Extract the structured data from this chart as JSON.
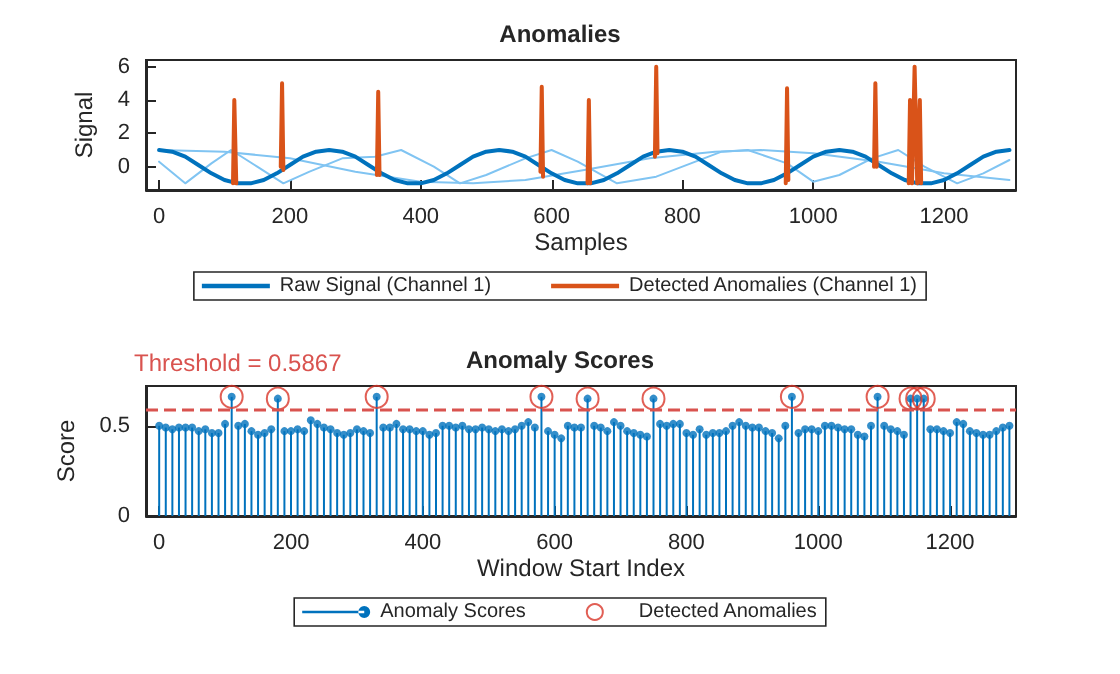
{
  "chart_data": [
    {
      "type": "line",
      "title": "Anomalies",
      "xlabel": "Samples",
      "ylabel": "Signal",
      "xlim": [
        -20,
        1310
      ],
      "ylim": [
        -1.4,
        6.4
      ],
      "xticks": [
        0,
        200,
        400,
        600,
        800,
        1000,
        1200
      ],
      "yticks": [
        0,
        2,
        4,
        6
      ],
      "grid": false,
      "legend": "bottom",
      "marker": "none",
      "line_style": "solid",
      "series": [
        {
          "color": "#80c4f2",
          "x": [
            0,
            40,
            80,
            110,
            150,
            190,
            230,
            280,
            330,
            370,
            420,
            460,
            500,
            560,
            600,
            640,
            700,
            760,
            820,
            860,
            900,
            960,
            1000,
            1040,
            1090,
            1130,
            1170,
            1220,
            1260,
            1300
          ],
          "values": [
            0.3,
            -1,
            0.2,
            1,
            0,
            -1,
            -0.3,
            0.5,
            0.6,
            1,
            0,
            -1,
            -0.5,
            0.5,
            1,
            0.3,
            -1,
            -0.6,
            0.3,
            0.9,
            1,
            0.2,
            -0.9,
            -0.5,
            0.5,
            1,
            0,
            -1,
            -0.4,
            0.4
          ]
        },
        {
          "color": "#80c4f2",
          "x": [
            0,
            100,
            200,
            300,
            400,
            480,
            560,
            650,
            750,
            850,
            920,
            1000,
            1100,
            1200,
            1300
          ],
          "values": [
            1,
            0.9,
            0.5,
            -0.3,
            -0.9,
            -1,
            -0.8,
            -0.2,
            0.5,
            0.9,
            1,
            0.8,
            0.3,
            -0.4,
            -0.8
          ]
        },
        {
          "name": "Raw Signal (Channel 1)",
          "color": "#0072bd",
          "x": [
            0,
            20,
            40,
            60,
            80,
            100,
            120,
            140,
            160,
            180,
            200,
            220,
            240,
            260,
            280,
            300,
            320,
            340,
            360,
            380,
            400,
            420,
            440,
            460,
            480,
            500,
            520,
            540,
            560,
            580,
            600,
            620,
            640,
            660,
            680,
            700,
            720,
            740,
            760,
            780,
            800,
            820,
            840,
            860,
            880,
            900,
            920,
            940,
            960,
            980,
            1000,
            1020,
            1040,
            1060,
            1080,
            1100,
            1120,
            1140,
            1160,
            1180,
            1200,
            1220,
            1240,
            1260,
            1280,
            1300
          ],
          "values": [
            1,
            0.9,
            0.6,
            0.1,
            -0.4,
            -0.8,
            -1,
            -1,
            -0.8,
            -0.4,
            0.1,
            0.6,
            0.9,
            1,
            0.9,
            0.6,
            0.1,
            -0.4,
            -0.8,
            -1,
            -1,
            -0.8,
            -0.4,
            0.1,
            0.6,
            0.9,
            1,
            0.9,
            0.6,
            0.1,
            -0.4,
            -0.8,
            -1,
            -1,
            -0.8,
            -0.4,
            0.1,
            0.6,
            0.9,
            1,
            0.9,
            0.6,
            0.1,
            -0.4,
            -0.8,
            -1,
            -1,
            -0.8,
            -0.4,
            0.1,
            0.6,
            0.9,
            1,
            0.9,
            0.6,
            0.1,
            -0.4,
            -0.8,
            -1,
            -1,
            -0.8,
            -0.4,
            0.1,
            0.6,
            0.9,
            1
          ]
        },
        {
          "name": "Detected Anomalies (Channel 1)",
          "color": "#d95319",
          "x": [
            113,
            115,
            118,
            119,
            186,
            188,
            190,
            191,
            333,
            335,
            337,
            338,
            583,
            585,
            587,
            588,
            655,
            657,
            659,
            660,
            758,
            760,
            762,
            763,
            958,
            960,
            962,
            963,
            1093,
            1095,
            1097,
            1098,
            1146,
            1148,
            1151,
            1155,
            1159,
            1163,
            1165
          ],
          "values": [
            -1,
            4,
            -1,
            null,
            0,
            5,
            -0.2,
            null,
            -0.5,
            4.5,
            -0.5,
            null,
            -0.3,
            4.8,
            -0.6,
            null,
            -1,
            4,
            -1,
            null,
            0.6,
            6,
            0.8,
            null,
            -1,
            4.7,
            -0.8,
            null,
            0,
            5,
            0,
            null,
            -1,
            4,
            -1,
            6,
            -1,
            4,
            -1
          ]
        }
      ]
    },
    {
      "type": "lollipop",
      "title": "Anomaly Scores",
      "xlabel": "Window Start Index",
      "ylabel": "Score",
      "xlim": [
        -20,
        1300
      ],
      "ylim": [
        0,
        0.72
      ],
      "xticks": [
        0,
        200,
        400,
        600,
        800,
        1000,
        1200
      ],
      "yticks": [
        0,
        0.5
      ],
      "grid": false,
      "legend": "bottom",
      "marker": "circle",
      "ref_lines": [
        {
          "axis": "y",
          "value": 0.5867,
          "label": "Threshold = 0.5867",
          "color": "#d9534f",
          "line_style": "dashed"
        }
      ],
      "series": [
        {
          "name": "Anomaly Scores",
          "color": "#0072bd",
          "x": [
            0,
            10,
            20,
            30,
            40,
            50,
            60,
            70,
            80,
            90,
            100,
            110,
            120,
            130,
            140,
            150,
            160,
            170,
            180,
            190,
            200,
            210,
            220,
            230,
            240,
            250,
            260,
            270,
            280,
            290,
            300,
            310,
            320,
            330,
            340,
            350,
            360,
            370,
            380,
            390,
            400,
            410,
            420,
            430,
            440,
            450,
            460,
            470,
            480,
            490,
            500,
            510,
            520,
            530,
            540,
            550,
            560,
            570,
            580,
            590,
            600,
            610,
            620,
            630,
            640,
            650,
            660,
            670,
            680,
            690,
            700,
            710,
            720,
            730,
            740,
            750,
            760,
            770,
            780,
            790,
            800,
            810,
            820,
            830,
            840,
            850,
            860,
            870,
            880,
            890,
            900,
            910,
            920,
            930,
            940,
            950,
            960,
            970,
            980,
            990,
            1000,
            1010,
            1020,
            1030,
            1040,
            1050,
            1060,
            1070,
            1080,
            1090,
            1100,
            1110,
            1120,
            1130,
            1140,
            1150,
            1160,
            1170,
            1180,
            1190,
            1200,
            1210,
            1220,
            1230,
            1240,
            1250,
            1260,
            1270,
            1280,
            1290
          ],
          "values": [
            0.5,
            0.49,
            0.48,
            0.49,
            0.49,
            0.49,
            0.47,
            0.48,
            0.46,
            0.46,
            0.51,
            0.66,
            0.5,
            0.51,
            0.47,
            0.45,
            0.46,
            0.48,
            0.65,
            0.47,
            0.47,
            0.48,
            0.47,
            0.53,
            0.51,
            0.49,
            0.48,
            0.46,
            0.45,
            0.46,
            0.48,
            0.47,
            0.46,
            0.66,
            0.49,
            0.49,
            0.51,
            0.48,
            0.48,
            0.47,
            0.47,
            0.45,
            0.46,
            0.5,
            0.5,
            0.49,
            0.5,
            0.48,
            0.48,
            0.49,
            0.48,
            0.47,
            0.48,
            0.47,
            0.48,
            0.5,
            0.52,
            0.49,
            0.66,
            0.47,
            0.45,
            0.43,
            0.5,
            0.49,
            0.49,
            0.65,
            0.5,
            0.49,
            0.47,
            0.52,
            0.5,
            0.47,
            0.46,
            0.45,
            0.44,
            0.65,
            0.51,
            0.5,
            0.51,
            0.51,
            0.46,
            0.45,
            0.48,
            0.45,
            0.46,
            0.46,
            0.47,
            0.5,
            0.52,
            0.5,
            0.49,
            0.49,
            0.47,
            0.46,
            0.43,
            0.5,
            0.66,
            0.46,
            0.48,
            0.48,
            0.47,
            0.5,
            0.5,
            0.49,
            0.48,
            0.48,
            0.45,
            0.44,
            0.5,
            0.66,
            0.5,
            0.48,
            0.47,
            0.45,
            0.65,
            0.65,
            0.65,
            0.48,
            0.48,
            0.47,
            0.46,
            0.52,
            0.51,
            0.47,
            0.46,
            0.45,
            0.45,
            0.47,
            0.49,
            0.5
          ]
        },
        {
          "name": "Detected Anomalies",
          "type": "scatter",
          "color": "#d9372b",
          "x": [
            110,
            180,
            330,
            580,
            650,
            750,
            960,
            1090,
            1140,
            1150,
            1160
          ],
          "values": [
            0.66,
            0.65,
            0.66,
            0.66,
            0.65,
            0.65,
            0.66,
            0.66,
            0.65,
            0.65,
            0.65
          ]
        }
      ]
    }
  ]
}
